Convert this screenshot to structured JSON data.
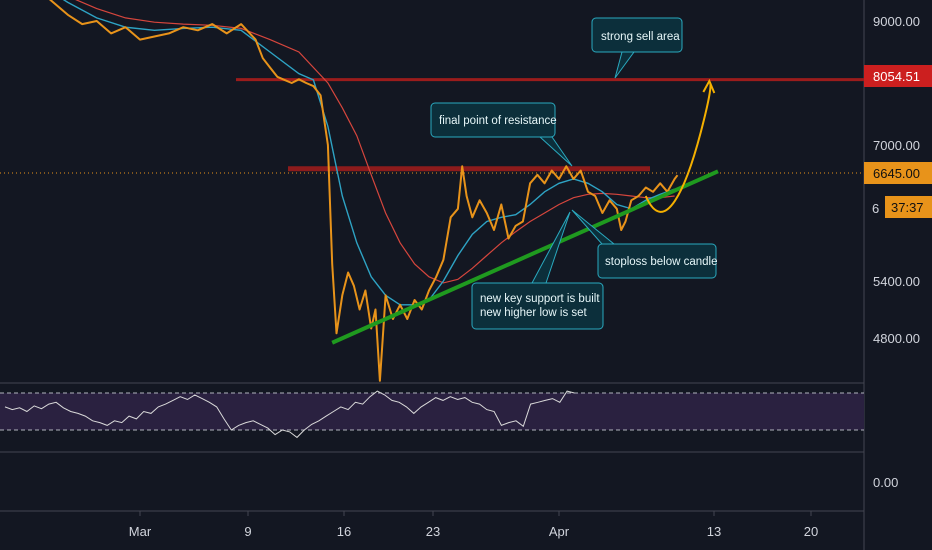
{
  "colors": {
    "background": "#131722",
    "price": "#e8931a",
    "ma_fast": "#2ea3c4",
    "ma_slow": "#d6463d",
    "resistance": "#9b1c1c",
    "support": "#1f9a1f",
    "projection": "#f5b000",
    "callout_fill": "#0c2f3b",
    "callout_border": "#2aa9bf",
    "rsi_band": "#2a2140",
    "rsi_line": "#d9d9d9",
    "price_tag": "#e8931a",
    "sell_tag": "#cc1f1f"
  },
  "chart_data": [
    {
      "type": "line",
      "name": "price-panel",
      "x_labels": [
        "Mar",
        "9",
        "16",
        "23",
        "Apr",
        "13",
        "20"
      ],
      "y_ticks": [
        4800,
        5400,
        7000,
        9000
      ],
      "y_tick_labels": [
        "4800.00",
        "5400.00",
        "7000.00",
        "9000.00"
      ],
      "y_partial_tick": "6",
      "current_price_label": "6645.00",
      "countdown_label": "37:37",
      "sell_level_label": "8054.51",
      "sell_level": 8054.51,
      "resistance_level": 6720,
      "price_series": [
        [
          22,
          9500
        ],
        [
          23,
          9300
        ],
        [
          24,
          9100
        ],
        [
          25,
          8950
        ],
        [
          26,
          9000
        ],
        [
          27,
          8800
        ],
        [
          28,
          8900
        ],
        [
          29,
          8700
        ],
        [
          30,
          8750
        ],
        [
          31,
          8800
        ],
        [
          32,
          8900
        ],
        [
          33,
          8850
        ],
        [
          34,
          8950
        ],
        [
          35,
          8800
        ],
        [
          36,
          8950
        ],
        [
          37,
          8700
        ],
        [
          37.5,
          8400
        ],
        [
          38,
          8250
        ],
        [
          38.5,
          8100
        ],
        [
          39,
          8050
        ],
        [
          39.5,
          8000
        ],
        [
          40,
          8060
        ],
        [
          40.5,
          8000
        ],
        [
          41,
          7950
        ],
        [
          41.5,
          7800
        ],
        [
          42,
          7000
        ],
        [
          42.3,
          5600
        ],
        [
          42.6,
          4850
        ],
        [
          43,
          5250
        ],
        [
          43.4,
          5500
        ],
        [
          43.8,
          5350
        ],
        [
          44.2,
          5100
        ],
        [
          44.6,
          5300
        ],
        [
          45,
          4900
        ],
        [
          45.3,
          5100
        ],
        [
          45.6,
          4350
        ],
        [
          46,
          5250
        ],
        [
          46.5,
          5000
        ],
        [
          47,
          5150
        ],
        [
          47.5,
          5000
        ],
        [
          48,
          5200
        ],
        [
          48.5,
          5100
        ],
        [
          49,
          5300
        ],
        [
          49.5,
          5450
        ],
        [
          50,
          5650
        ],
        [
          50.5,
          6150
        ],
        [
          51,
          6250
        ],
        [
          51.3,
          6750
        ],
        [
          51.6,
          6400
        ],
        [
          52,
          6150
        ],
        [
          52.5,
          6350
        ],
        [
          53,
          6200
        ],
        [
          53.5,
          6000
        ],
        [
          54,
          6300
        ],
        [
          54.5,
          5900
        ],
        [
          55,
          6050
        ],
        [
          55.5,
          6100
        ],
        [
          56,
          6550
        ],
        [
          56.5,
          6650
        ],
        [
          57,
          6550
        ],
        [
          57.5,
          6700
        ],
        [
          58,
          6600
        ],
        [
          58.5,
          6750
        ],
        [
          59,
          6600
        ],
        [
          59.5,
          6700
        ],
        [
          60,
          6450
        ],
        [
          60.5,
          6400
        ],
        [
          61,
          6200
        ],
        [
          61.5,
          6350
        ],
        [
          62,
          6250
        ],
        [
          62.3,
          6000
        ],
        [
          62.6,
          6100
        ],
        [
          63,
          6350
        ],
        [
          63.5,
          6400
        ],
        [
          64,
          6500
        ],
        [
          64.5,
          6450
        ],
        [
          65,
          6550
        ],
        [
          65.5,
          6450
        ],
        [
          66,
          6600
        ],
        [
          66.2,
          6645
        ]
      ],
      "ma_fast_series": [
        [
          22,
          9600
        ],
        [
          24,
          9300
        ],
        [
          26,
          9050
        ],
        [
          28,
          8900
        ],
        [
          30,
          8850
        ],
        [
          32,
          8880
        ],
        [
          34,
          8900
        ],
        [
          36,
          8850
        ],
        [
          38,
          8500
        ],
        [
          40,
          8150
        ],
        [
          41,
          8050
        ],
        [
          42,
          7300
        ],
        [
          43,
          6400
        ],
        [
          44,
          5850
        ],
        [
          45,
          5450
        ],
        [
          46,
          5250
        ],
        [
          47,
          5150
        ],
        [
          48,
          5150
        ],
        [
          49,
          5200
        ],
        [
          50,
          5400
        ],
        [
          51,
          5700
        ],
        [
          52,
          5950
        ],
        [
          53,
          6100
        ],
        [
          54,
          6150
        ],
        [
          55,
          6180
        ],
        [
          56,
          6300
        ],
        [
          57,
          6450
        ],
        [
          58,
          6550
        ],
        [
          59,
          6600
        ],
        [
          60,
          6550
        ],
        [
          61,
          6450
        ],
        [
          62,
          6300
        ],
        [
          63,
          6250
        ],
        [
          64,
          6350
        ],
        [
          65,
          6420
        ],
        [
          66,
          6480
        ]
      ],
      "ma_slow_series": [
        [
          24,
          9400
        ],
        [
          26,
          9200
        ],
        [
          28,
          9050
        ],
        [
          30,
          8980
        ],
        [
          32,
          8950
        ],
        [
          34,
          8930
        ],
        [
          36,
          8880
        ],
        [
          38,
          8700
        ],
        [
          40,
          8500
        ],
        [
          42,
          8000
        ],
        [
          43,
          7600
        ],
        [
          44,
          7150
        ],
        [
          45,
          6650
        ],
        [
          46,
          6200
        ],
        [
          47,
          5850
        ],
        [
          48,
          5600
        ],
        [
          49,
          5450
        ],
        [
          50,
          5380
        ],
        [
          51,
          5420
        ],
        [
          52,
          5550
        ],
        [
          53,
          5700
        ],
        [
          54,
          5850
        ],
        [
          55,
          5980
        ],
        [
          56,
          6100
        ],
        [
          57,
          6200
        ],
        [
          58,
          6300
        ],
        [
          59,
          6380
        ],
        [
          60,
          6420
        ],
        [
          61,
          6430
        ],
        [
          62,
          6420
        ],
        [
          63,
          6400
        ],
        [
          64,
          6380
        ],
        [
          65,
          6380
        ],
        [
          66,
          6400
        ]
      ],
      "support_line": [
        [
          42.3,
          4750
        ],
        [
          69,
          6690
        ]
      ],
      "projection_curve": [
        [
          64,
          6400
        ],
        [
          65.3,
          6250
        ],
        [
          66.8,
          6500
        ],
        [
          67.8,
          7200
        ],
        [
          68.4,
          8000
        ]
      ]
    },
    {
      "type": "line",
      "name": "oscillator-panel",
      "y_tick_labels": [
        "0.00"
      ],
      "band": [
        30,
        70
      ],
      "range": [
        0,
        100
      ],
      "series": [
        [
          0,
          55
        ],
        [
          1,
          52
        ],
        [
          2,
          54
        ],
        [
          3,
          50
        ],
        [
          4,
          56
        ],
        [
          5,
          53
        ],
        [
          6,
          58
        ],
        [
          7,
          60
        ],
        [
          8,
          54
        ],
        [
          9,
          50
        ],
        [
          10,
          48
        ],
        [
          11,
          45
        ],
        [
          12,
          40
        ],
        [
          13,
          38
        ],
        [
          14,
          35
        ],
        [
          15,
          40
        ],
        [
          16,
          38
        ],
        [
          17,
          45
        ],
        [
          18,
          42
        ],
        [
          19,
          50
        ],
        [
          20,
          48
        ],
        [
          21,
          55
        ],
        [
          22,
          58
        ],
        [
          23,
          62
        ],
        [
          24,
          66
        ],
        [
          25,
          63
        ],
        [
          26,
          68
        ],
        [
          27,
          64
        ],
        [
          28,
          60
        ],
        [
          29,
          55
        ],
        [
          30,
          42
        ],
        [
          31,
          30
        ],
        [
          32,
          35
        ],
        [
          33,
          38
        ],
        [
          34,
          40
        ],
        [
          35,
          36
        ],
        [
          36,
          32
        ],
        [
          37,
          25
        ],
        [
          38,
          30
        ],
        [
          39,
          28
        ],
        [
          40,
          22
        ],
        [
          41,
          30
        ],
        [
          42,
          36
        ],
        [
          43,
          40
        ],
        [
          44,
          45
        ],
        [
          45,
          50
        ],
        [
          46,
          55
        ],
        [
          47,
          52
        ],
        [
          48,
          60
        ],
        [
          49,
          58
        ],
        [
          50,
          66
        ],
        [
          51,
          72
        ],
        [
          52,
          68
        ],
        [
          53,
          62
        ],
        [
          54,
          60
        ],
        [
          55,
          55
        ],
        [
          56,
          48
        ],
        [
          57,
          55
        ],
        [
          58,
          60
        ],
        [
          59,
          65
        ],
        [
          60,
          62
        ],
        [
          61,
          66
        ],
        [
          62,
          63
        ],
        [
          63,
          65
        ],
        [
          64,
          60
        ],
        [
          65,
          58
        ],
        [
          66,
          52
        ],
        [
          67,
          50
        ],
        [
          68,
          35
        ],
        [
          69,
          38
        ],
        [
          70,
          40
        ],
        [
          71,
          34
        ],
        [
          72,
          58
        ],
        [
          73,
          60
        ],
        [
          74,
          62
        ],
        [
          75,
          64
        ],
        [
          76,
          60
        ],
        [
          77,
          72
        ],
        [
          78,
          70
        ]
      ]
    }
  ],
  "annotations": {
    "strong_sell": "strong sell area",
    "final_resistance": "final point of resistance",
    "stoploss": "stoploss below candle",
    "support_line1": "new key support is built",
    "support_line2": "new higher low is set"
  }
}
